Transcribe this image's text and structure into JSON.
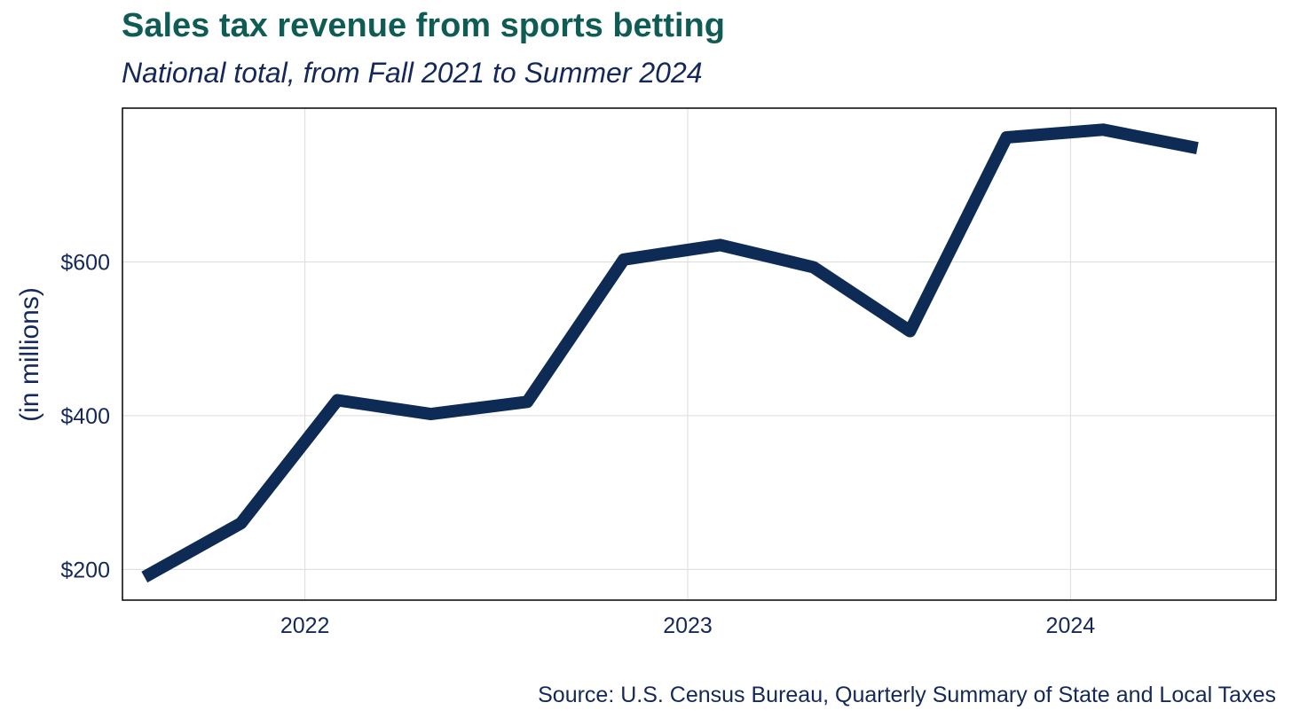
{
  "chart_data": {
    "type": "line",
    "title": "Sales tax revenue from sports betting",
    "subtitle": "National total, from Fall 2021 to Summer 2024",
    "source": "Source: U.S. Census Bureau, Quarterly Summary of State and Local Taxes",
    "xlabel": "",
    "ylabel": "(in millions)",
    "x": [
      "2021-08-01",
      "2021-11-01",
      "2022-02-01",
      "2022-05-01",
      "2022-08-01",
      "2022-11-01",
      "2023-02-01",
      "2023-05-01",
      "2023-08-01",
      "2023-11-01",
      "2024-02-01",
      "2024-05-01"
    ],
    "series": [
      {
        "values": [
          190,
          260,
          420,
          402,
          418,
          603,
          622,
          593,
          510,
          762,
          772,
          748
        ]
      }
    ],
    "x_ticks": [
      {
        "value": "2022-01-01",
        "label": "2022"
      },
      {
        "value": "2023-01-01",
        "label": "2023"
      },
      {
        "value": "2024-01-01",
        "label": "2024"
      }
    ],
    "y_ticks": [
      {
        "value": 200,
        "label": "$200"
      },
      {
        "value": 400,
        "label": "$400"
      },
      {
        "value": 600,
        "label": "$600"
      }
    ],
    "xlim": [
      "2021-07-11",
      "2024-07-15"
    ],
    "ylim": [
      160,
      800
    ],
    "grid": true,
    "colors": {
      "line": "#0d2b55",
      "grid": "#dcdcdc",
      "title": "#0f5c55",
      "text": "#14285a",
      "frame": "#000000"
    }
  }
}
